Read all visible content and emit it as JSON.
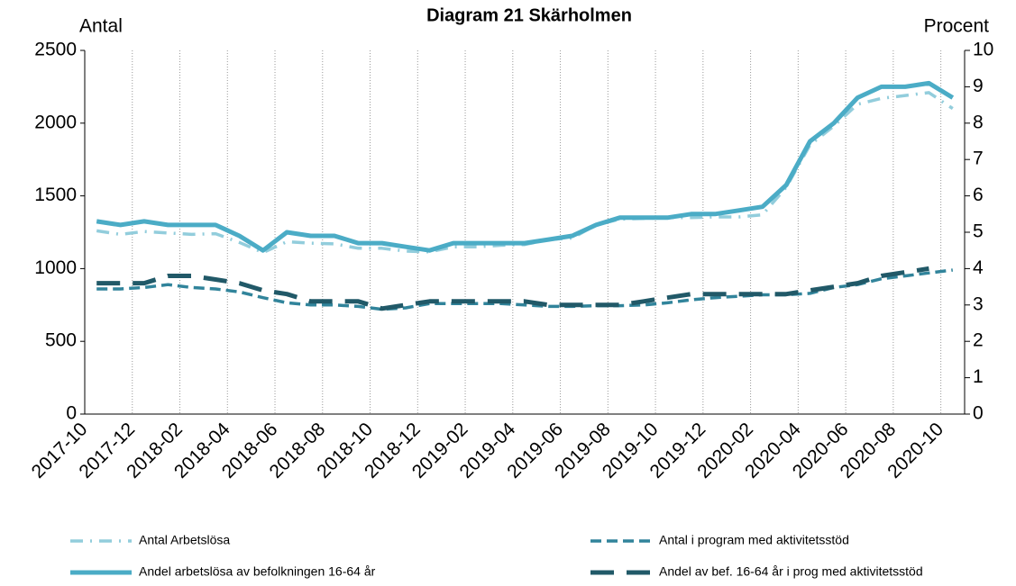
{
  "chart_data": {
    "type": "line",
    "title": "Diagram 21 Skärholmen",
    "y_label": "Antal",
    "y2_label": "Procent",
    "categories": [
      "2017-10",
      null,
      "2017-12",
      null,
      "2018-02",
      null,
      "2018-04",
      null,
      "2018-06",
      null,
      "2018-08",
      null,
      "2018-10",
      null,
      "2018-12",
      null,
      "2019-02",
      null,
      "2019-04",
      null,
      "2019-06",
      null,
      "2019-08",
      null,
      "2019-10",
      null,
      "2019-12",
      null,
      "2020-02",
      null,
      "2020-04",
      null,
      "2020-06",
      null,
      "2020-08",
      null,
      "2020-10"
    ],
    "ylim": [
      0,
      2500
    ],
    "yticks": [
      0,
      500,
      1000,
      1500,
      2000,
      2500
    ],
    "y2lim": [
      0,
      10
    ],
    "y2ticks": [
      0,
      1,
      2,
      3,
      4,
      5,
      6,
      7,
      8,
      9,
      10
    ],
    "grid": "x",
    "series": [
      {
        "name": "Antal Arbetslösa",
        "color": "#92cddc",
        "line_style": "dashdot",
        "axis": "y",
        "values": [
          1260,
          1235,
          1255,
          1245,
          1235,
          1240,
          1180,
          1110,
          1185,
          1175,
          1170,
          1140,
          1140,
          1120,
          1115,
          1150,
          1150,
          1160,
          1165,
          1200,
          1210,
          1300,
          1340,
          1345,
          1350,
          1350,
          1355,
          1355,
          1370,
          1560,
          1850,
          1980,
          2130,
          2170,
          2190,
          2210,
          2100
        ]
      },
      {
        "name": "Antal i program med aktivitetsstöd",
        "color": "#31849b",
        "line_style": "dashed",
        "axis": "y",
        "values": [
          860,
          860,
          870,
          890,
          870,
          860,
          840,
          800,
          765,
          750,
          750,
          740,
          720,
          730,
          760,
          760,
          760,
          760,
          750,
          740,
          740,
          745,
          745,
          750,
          765,
          785,
          800,
          810,
          820,
          820,
          830,
          870,
          890,
          930,
          950,
          970,
          990
        ]
      },
      {
        "name": "Andel arbetslösa av befolkningen 16-64 år",
        "color": "#4bacc6",
        "line_style": "solid",
        "axis": "y2",
        "values": [
          5.3,
          5.2,
          5.3,
          5.2,
          5.2,
          5.2,
          4.9,
          4.5,
          5.0,
          4.9,
          4.9,
          4.7,
          4.7,
          4.6,
          4.5,
          4.7,
          4.7,
          4.7,
          4.7,
          4.8,
          4.9,
          5.2,
          5.4,
          5.4,
          5.4,
          5.5,
          5.5,
          5.6,
          5.7,
          6.3,
          7.5,
          8.0,
          8.7,
          9.0,
          9.0,
          9.1,
          8.7
        ]
      },
      {
        "name": "Andel av bef. 16-64 år i prog med aktivitetsstöd",
        "color": "#215968",
        "line_style": "longdash",
        "axis": "y2",
        "values": [
          3.6,
          3.6,
          3.6,
          3.8,
          3.8,
          3.7,
          3.6,
          3.4,
          3.3,
          3.1,
          3.1,
          3.1,
          2.9,
          3.0,
          3.1,
          3.1,
          3.1,
          3.1,
          3.1,
          3.0,
          3.0,
          3.0,
          3.0,
          3.1,
          3.2,
          3.3,
          3.3,
          3.3,
          3.3,
          3.3,
          3.4,
          3.5,
          3.6,
          3.8,
          3.9,
          4.0,
          null
        ]
      }
    ]
  }
}
